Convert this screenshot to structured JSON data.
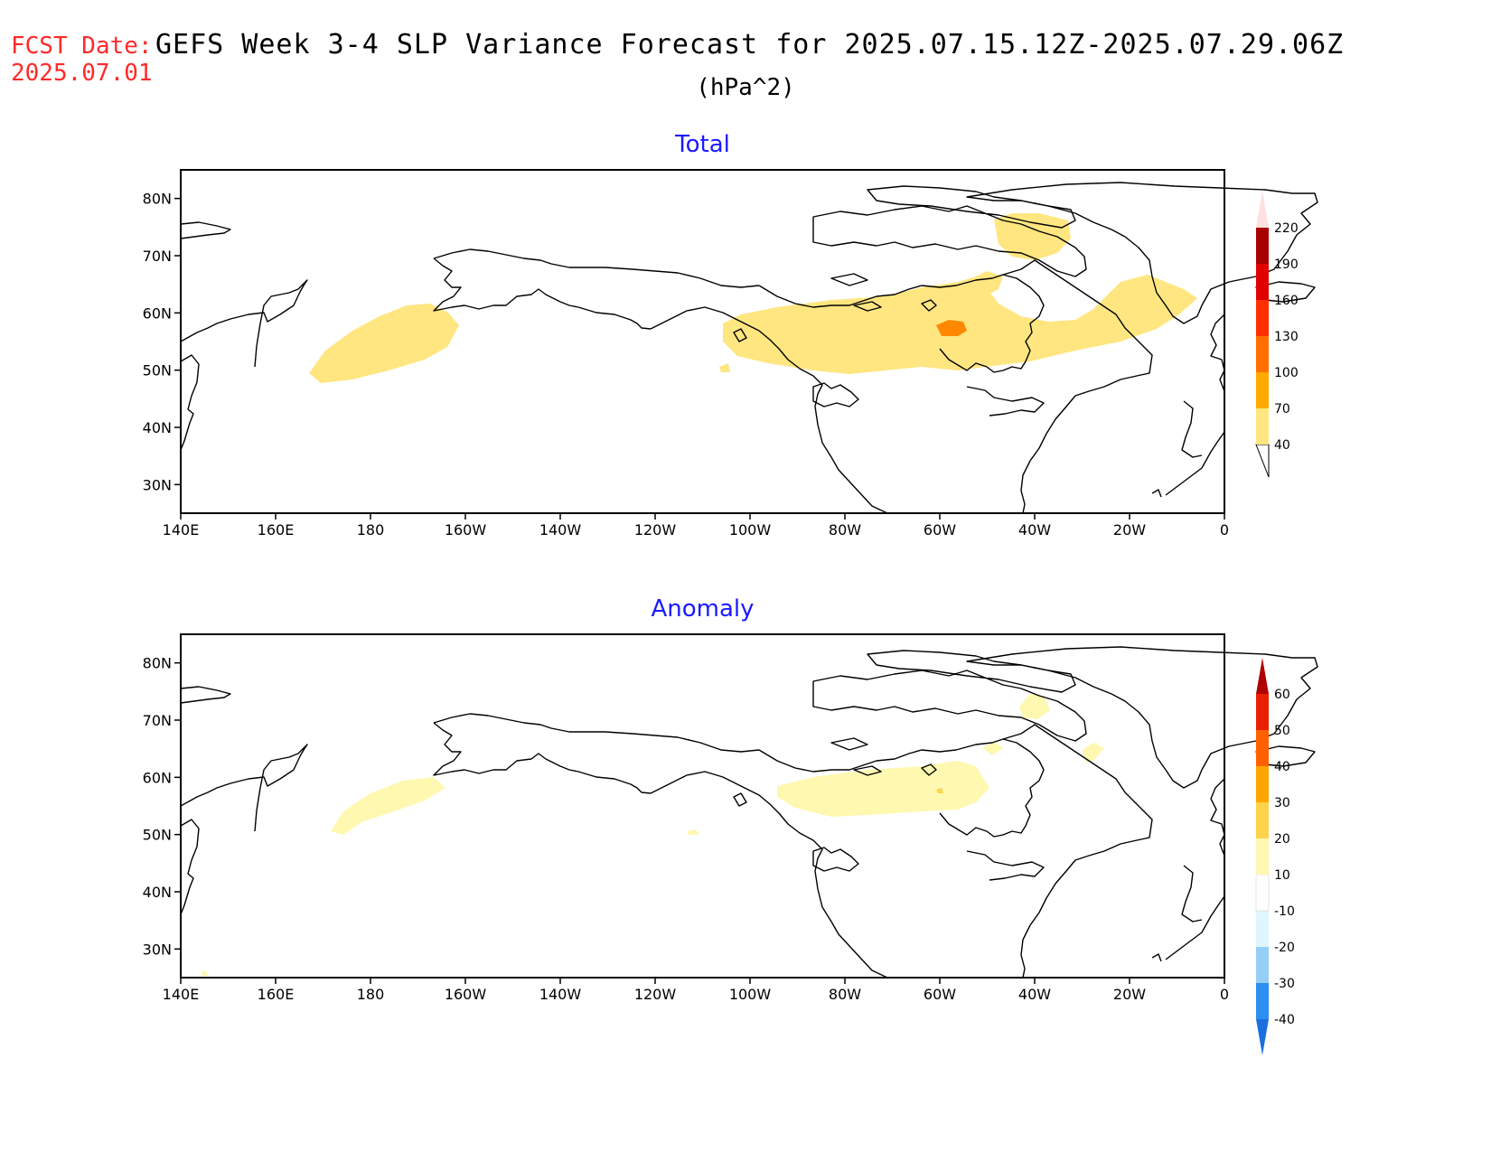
{
  "header": {
    "fcst_label": "FCST Date:",
    "fcst_date": "2025.07.01",
    "title": "GEFS Week 3-4 SLP Variance Forecast for 2025.07.15.12Z-2025.07.29.06Z",
    "units": "(hPa^2)"
  },
  "axes": {
    "x_ticks": [
      "140E",
      "160E",
      "180",
      "160W",
      "140W",
      "120W",
      "100W",
      "80W",
      "60W",
      "40W",
      "20W",
      "0"
    ],
    "y_ticks": [
      "30N",
      "40N",
      "50N",
      "60N",
      "70N",
      "80N"
    ],
    "lon_range": [
      140,
      360
    ],
    "lat_range": [
      25,
      85
    ]
  },
  "panels": [
    {
      "title": "Total",
      "colorbar": {
        "labels": [
          "40",
          "70",
          "100",
          "130",
          "160",
          "190",
          "220"
        ],
        "colors": [
          "#ffe680",
          "#ffaa00",
          "#ff7000",
          "#ff3000",
          "#e00000",
          "#a80000",
          "#f0a0a0",
          "#ffe0e0"
        ]
      }
    },
    {
      "title": "Anomaly",
      "colorbar": {
        "labels": [
          "-40",
          "-30",
          "-20",
          "-10",
          "10",
          "20",
          "30",
          "40",
          "50",
          "60"
        ],
        "colors": [
          "#1a6fe0",
          "#2e8ef0",
          "#96cff5",
          "#dff6ff",
          "#ffffff",
          "#fff8b0",
          "#ffd24c",
          "#ffa500",
          "#ff6000",
          "#e82000",
          "#b00000"
        ]
      }
    }
  ],
  "map_features": [
    "coastline",
    "lakes",
    "shaded-variance"
  ]
}
